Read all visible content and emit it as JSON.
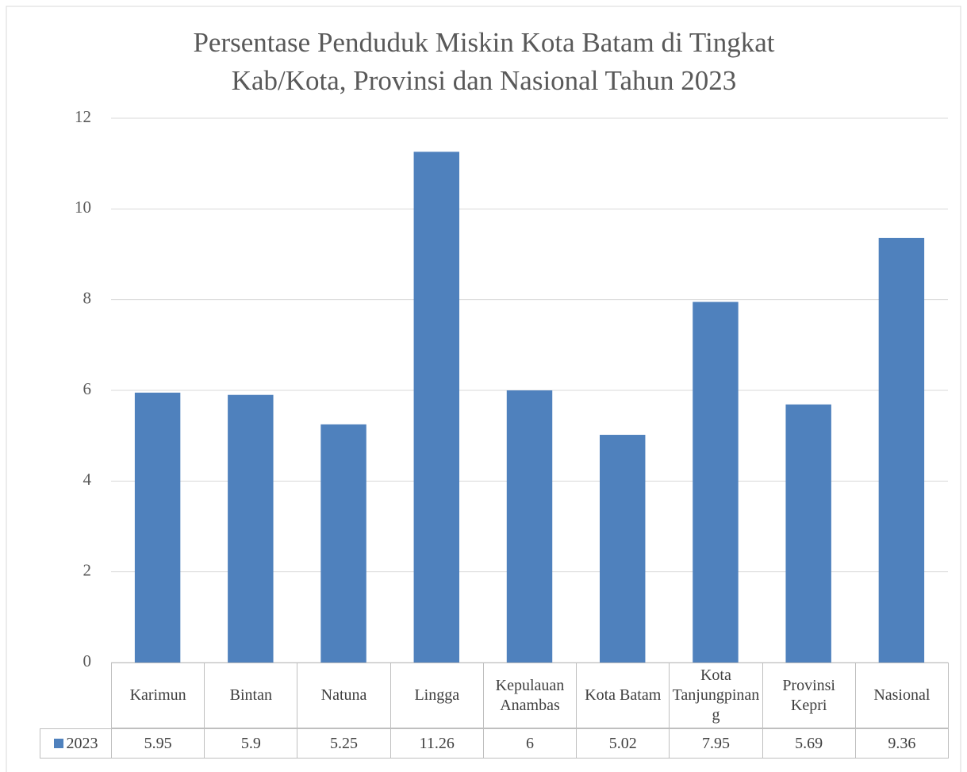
{
  "chart_data": {
    "type": "bar",
    "title": "Persentase Penduduk Miskin Kota Batam di Tingkat Kab/Kota, Provinsi dan Nasional Tahun 2023",
    "categories": [
      "Karimun",
      "Bintan",
      "Natuna",
      "Lingga",
      "Kepulauan Anambas",
      "Kota Batam",
      "Kota Tanjungpinang",
      "Provinsi Kepri",
      "Nasional"
    ],
    "series": [
      {
        "name": "2023",
        "color": "#4f81bd",
        "values": [
          5.95,
          5.9,
          5.25,
          11.26,
          6,
          5.02,
          7.95,
          5.69,
          9.36
        ]
      }
    ],
    "ylim": [
      0,
      12
    ],
    "yticks": [
      0,
      2,
      4,
      6,
      8,
      10,
      12
    ],
    "grid": true,
    "data_table": true
  }
}
